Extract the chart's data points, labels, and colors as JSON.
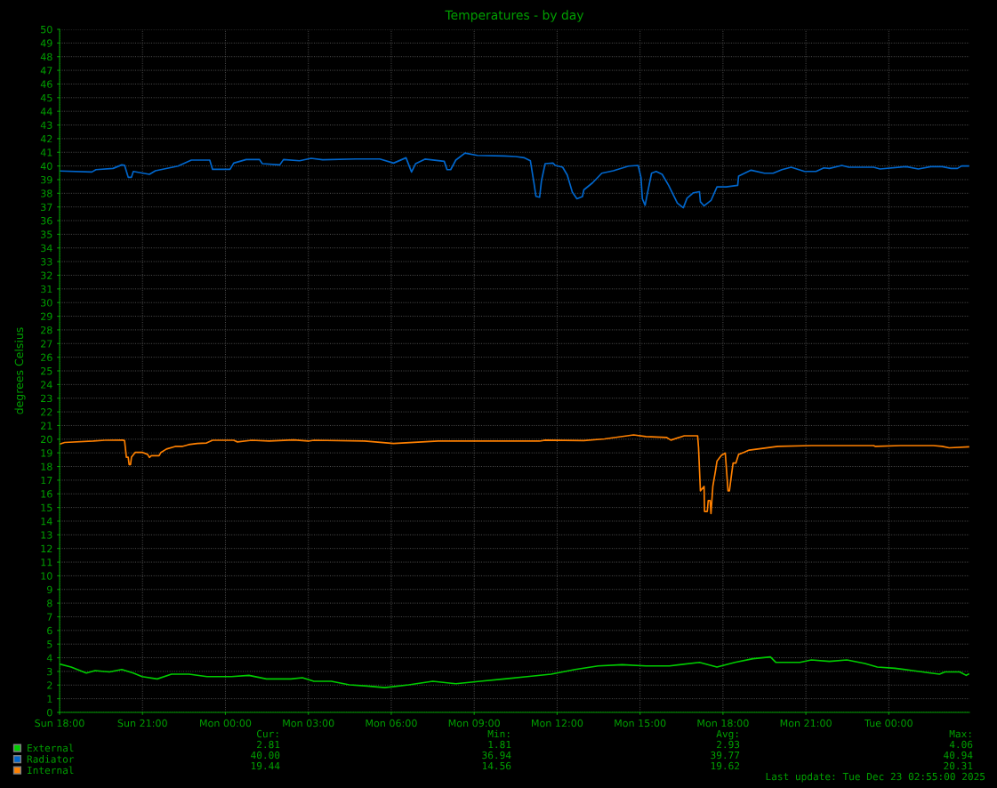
{
  "chart_data": {
    "type": "line",
    "title": "Temperatures - by day",
    "ylabel": "degrees Celsius",
    "xlim": [
      "2025-12-21T18:00",
      "2025-12-23T02:55"
    ],
    "xticks": [
      {
        "value": "2025-12-21T18:00",
        "label": "Sun 18:00"
      },
      {
        "value": "2025-12-21T21:00",
        "label": "Sun 21:00"
      },
      {
        "value": "2025-12-22T00:00",
        "label": "Mon 00:00"
      },
      {
        "value": "2025-12-22T03:00",
        "label": "Mon 03:00"
      },
      {
        "value": "2025-12-22T06:00",
        "label": "Mon 06:00"
      },
      {
        "value": "2025-12-22T09:00",
        "label": "Mon 09:00"
      },
      {
        "value": "2025-12-22T12:00",
        "label": "Mon 12:00"
      },
      {
        "value": "2025-12-22T15:00",
        "label": "Mon 15:00"
      },
      {
        "value": "2025-12-22T18:00",
        "label": "Mon 18:00"
      },
      {
        "value": "2025-12-22T21:00",
        "label": "Mon 21:00"
      },
      {
        "value": "2025-12-23T00:00",
        "label": "Tue 00:00"
      }
    ],
    "ylim": [
      0,
      50
    ],
    "yticks": [
      0,
      1,
      2,
      3,
      4,
      5,
      6,
      7,
      8,
      9,
      10,
      11,
      12,
      13,
      14,
      15,
      16,
      17,
      18,
      19,
      20,
      21,
      22,
      23,
      24,
      25,
      26,
      27,
      28,
      29,
      30,
      31,
      32,
      33,
      34,
      35,
      36,
      37,
      38,
      39,
      40,
      41,
      42,
      43,
      44,
      45,
      46,
      47,
      48,
      49,
      50
    ],
    "grid": true,
    "legend": "bottom",
    "series": [
      {
        "name": "External",
        "color": "#00cc00",
        "x": [
          "2025-12-21T18:00",
          "2025-12-21T18:25",
          "2025-12-21T18:58",
          "2025-12-21T19:17",
          "2025-12-21T19:48",
          "2025-12-21T20:15",
          "2025-12-21T20:40",
          "2025-12-21T20:59",
          "2025-12-21T21:32",
          "2025-12-21T22:03",
          "2025-12-21T22:41",
          "2025-12-21T23:20",
          "2025-12-22T00:13",
          "2025-12-22T00:51",
          "2025-12-22T01:29",
          "2025-12-22T02:22",
          "2025-12-22T02:47",
          "2025-12-22T03:12",
          "2025-12-22T03:50",
          "2025-12-22T04:29",
          "2025-12-22T05:08",
          "2025-12-22T05:46",
          "2025-12-22T06:38",
          "2025-12-22T07:30",
          "2025-12-22T08:20",
          "2025-12-22T09:13",
          "2025-12-22T10:05",
          "2025-12-22T10:55",
          "2025-12-22T11:47",
          "2025-12-22T12:39",
          "2025-12-22T13:29",
          "2025-12-22T14:21",
          "2025-12-22T15:13",
          "2025-12-22T16:04",
          "2025-12-22T17:09",
          "2025-12-22T17:47",
          "2025-12-22T18:26",
          "2025-12-22T19:05",
          "2025-12-22T19:43",
          "2025-12-22T19:55",
          "2025-12-22T20:47",
          "2025-12-22T21:12",
          "2025-12-22T21:51",
          "2025-12-22T22:29",
          "2025-12-22T23:08",
          "2025-12-22T23:35",
          "2025-12-23T00:13",
          "2025-12-23T00:52",
          "2025-12-23T01:31",
          "2025-12-23T01:50",
          "2025-12-23T02:02",
          "2025-12-23T02:34",
          "2025-12-23T02:48",
          "2025-12-23T02:53"
        ],
        "values": [
          3.54,
          3.32,
          2.88,
          3.06,
          2.96,
          3.14,
          2.88,
          2.62,
          2.45,
          2.8,
          2.8,
          2.62,
          2.62,
          2.71,
          2.45,
          2.45,
          2.54,
          2.28,
          2.28,
          2.02,
          1.93,
          1.81,
          2.02,
          2.28,
          2.1,
          2.28,
          2.45,
          2.62,
          2.8,
          3.14,
          3.4,
          3.49,
          3.4,
          3.4,
          3.66,
          3.32,
          3.66,
          3.93,
          4.06,
          3.66,
          3.66,
          3.84,
          3.74,
          3.84,
          3.58,
          3.32,
          3.23,
          3.06,
          2.88,
          2.8,
          2.96,
          2.96,
          2.71,
          2.81
        ]
      },
      {
        "name": "Radiator",
        "color": "#0066cc",
        "x": [
          "2025-12-21T18:00",
          "2025-12-21T19:10",
          "2025-12-21T19:19",
          "2025-12-21T19:56",
          "2025-12-21T20:15",
          "2025-12-21T20:21",
          "2025-12-21T20:29",
          "2025-12-21T20:36",
          "2025-12-21T20:40",
          "2025-12-21T21:15",
          "2025-12-21T21:28",
          "2025-12-21T22:17",
          "2025-12-21T22:46",
          "2025-12-21T23:26",
          "2025-12-21T23:32",
          "2025-12-22T00:10",
          "2025-12-22T00:18",
          "2025-12-22T00:45",
          "2025-12-22T01:14",
          "2025-12-22T01:20",
          "2025-12-22T01:58",
          "2025-12-22T02:06",
          "2025-12-22T02:41",
          "2025-12-22T03:06",
          "2025-12-22T03:31",
          "2025-12-22T04:43",
          "2025-12-22T05:35",
          "2025-12-22T06:05",
          "2025-12-22T06:32",
          "2025-12-22T06:44",
          "2025-12-22T06:53",
          "2025-12-22T07:13",
          "2025-12-22T07:55",
          "2025-12-22T08:01",
          "2025-12-22T08:09",
          "2025-12-22T08:20",
          "2025-12-22T08:40",
          "2025-12-22T09:07",
          "2025-12-22T10:05",
          "2025-12-22T10:30",
          "2025-12-22T10:49",
          "2025-12-22T11:02",
          "2025-12-22T11:10",
          "2025-12-22T11:14",
          "2025-12-22T11:22",
          "2025-12-22T11:26",
          "2025-12-22T11:34",
          "2025-12-22T11:51",
          "2025-12-22T11:56",
          "2025-12-22T12:12",
          "2025-12-22T12:22",
          "2025-12-22T12:33",
          "2025-12-22T12:43",
          "2025-12-22T12:55",
          "2025-12-22T12:58",
          "2025-12-22T13:17",
          "2025-12-22T13:37",
          "2025-12-22T14:02",
          "2025-12-22T14:35",
          "2025-12-22T14:56",
          "2025-12-22T15:02",
          "2025-12-22T15:05",
          "2025-12-22T15:11",
          "2025-12-22T15:15",
          "2025-12-22T15:25",
          "2025-12-22T15:35",
          "2025-12-22T15:48",
          "2025-12-22T16:02",
          "2025-12-22T16:21",
          "2025-12-22T16:34",
          "2025-12-22T16:42",
          "2025-12-22T16:56",
          "2025-12-22T17:09",
          "2025-12-22T17:11",
          "2025-12-22T17:19",
          "2025-12-22T17:34",
          "2025-12-22T17:47",
          "2025-12-22T18:07",
          "2025-12-22T18:32",
          "2025-12-22T18:34",
          "2025-12-22T19:01",
          "2025-12-22T19:30",
          "2025-12-22T19:49",
          "2025-12-22T20:08",
          "2025-12-22T20:28",
          "2025-12-22T20:57",
          "2025-12-22T21:22",
          "2025-12-22T21:39",
          "2025-12-22T21:51",
          "2025-12-22T22:18",
          "2025-12-22T22:33",
          "2025-12-22T23:27",
          "2025-12-22T23:41",
          "2025-12-23T00:38",
          "2025-12-23T01:04",
          "2025-12-23T01:31",
          "2025-12-23T01:56",
          "2025-12-23T02:15",
          "2025-12-23T02:29",
          "2025-12-23T02:38",
          "2025-12-23T02:53"
        ],
        "values": [
          39.63,
          39.56,
          39.73,
          39.82,
          40.08,
          40.05,
          39.17,
          39.17,
          39.6,
          39.39,
          39.65,
          39.99,
          40.43,
          40.43,
          39.75,
          39.75,
          40.21,
          40.47,
          40.47,
          40.17,
          40.08,
          40.47,
          40.38,
          40.56,
          40.45,
          40.51,
          40.51,
          40.21,
          40.6,
          39.56,
          40.17,
          40.5,
          40.34,
          39.73,
          39.73,
          40.43,
          40.94,
          40.77,
          40.73,
          40.69,
          40.6,
          40.38,
          38.69,
          37.78,
          37.71,
          38.91,
          40.17,
          40.21,
          40.04,
          39.91,
          39.34,
          38.08,
          37.6,
          37.76,
          38.25,
          38.77,
          39.47,
          39.65,
          39.99,
          40.04,
          39.17,
          37.6,
          37.12,
          37.82,
          39.47,
          39.6,
          39.39,
          38.58,
          37.28,
          36.94,
          37.64,
          38.04,
          38.12,
          37.38,
          37.08,
          37.47,
          38.47,
          38.47,
          38.58,
          39.26,
          39.69,
          39.47,
          39.47,
          39.73,
          39.91,
          39.6,
          39.6,
          39.86,
          39.82,
          40.04,
          39.91,
          39.91,
          39.78,
          39.95,
          39.78,
          39.95,
          39.95,
          39.82,
          39.82,
          40.0,
          40.0
        ]
      },
      {
        "name": "Internal",
        "color": "#ff8000",
        "x": [
          "2025-12-21T18:00",
          "2025-12-21T18:11",
          "2025-12-21T19:13",
          "2025-12-21T19:38",
          "2025-12-21T20:17",
          "2025-12-21T20:21",
          "2025-12-21T20:25",
          "2025-12-21T20:29",
          "2025-12-21T20:31",
          "2025-12-21T20:34",
          "2025-12-21T20:36",
          "2025-12-21T20:44",
          "2025-12-21T20:59",
          "2025-12-21T21:11",
          "2025-12-21T21:15",
          "2025-12-21T21:19",
          "2025-12-21T21:36",
          "2025-12-21T21:40",
          "2025-12-21T21:52",
          "2025-12-21T22:11",
          "2025-12-21T22:26",
          "2025-12-21T22:40",
          "2025-12-21T22:59",
          "2025-12-21T23:19",
          "2025-12-21T23:32",
          "2025-12-22T00:18",
          "2025-12-22T00:26",
          "2025-12-22T00:57",
          "2025-12-22T01:35",
          "2025-12-22T02:28",
          "2025-12-22T03:00",
          "2025-12-22T03:12",
          "2025-12-22T05:02",
          "2025-12-22T06:05",
          "2025-12-22T07:42",
          "2025-12-22T09:51",
          "2025-12-22T11:22",
          "2025-12-22T11:34",
          "2025-12-22T12:58",
          "2025-12-22T13:43",
          "2025-12-22T14:46",
          "2025-12-22T15:13",
          "2025-12-22T15:58",
          "2025-12-22T16:07",
          "2025-12-22T16:36",
          "2025-12-22T17:05",
          "2025-12-22T17:07",
          "2025-12-22T17:11",
          "2025-12-22T17:19",
          "2025-12-22T17:20",
          "2025-12-22T17:26",
          "2025-12-22T17:28",
          "2025-12-22T17:32",
          "2025-12-22T17:34",
          "2025-12-22T17:38",
          "2025-12-22T17:44",
          "2025-12-22T17:47",
          "2025-12-22T17:57",
          "2025-12-22T18:05",
          "2025-12-22T18:07",
          "2025-12-22T18:11",
          "2025-12-22T18:14",
          "2025-12-22T18:19",
          "2025-12-22T18:22",
          "2025-12-22T18:28",
          "2025-12-22T18:34",
          "2025-12-22T18:46",
          "2025-12-22T18:57",
          "2025-12-22T19:30",
          "2025-12-22T19:59",
          "2025-12-22T21:12",
          "2025-12-22T23:27",
          "2025-12-22T23:31",
          "2025-12-23T00:25",
          "2025-12-23T01:37",
          "2025-12-23T01:56",
          "2025-12-23T02:11",
          "2025-12-23T02:53"
        ],
        "values": [
          19.64,
          19.76,
          19.86,
          19.92,
          19.93,
          19.9,
          18.68,
          18.68,
          18.14,
          18.14,
          18.68,
          19.03,
          19.04,
          18.89,
          18.66,
          18.79,
          18.79,
          19.03,
          19.28,
          19.47,
          19.47,
          19.6,
          19.69,
          19.72,
          19.92,
          19.92,
          19.8,
          19.92,
          19.86,
          19.95,
          19.86,
          19.92,
          19.86,
          19.69,
          19.86,
          19.86,
          19.86,
          19.93,
          19.9,
          20.02,
          20.31,
          20.19,
          20.12,
          19.93,
          20.25,
          20.25,
          19.37,
          16.22,
          16.54,
          14.71,
          14.71,
          15.51,
          15.51,
          14.56,
          16.54,
          17.74,
          18.39,
          18.83,
          18.98,
          18.07,
          16.22,
          16.22,
          17.52,
          18.25,
          18.25,
          18.89,
          19.04,
          19.2,
          19.34,
          19.47,
          19.53,
          19.53,
          19.47,
          19.53,
          19.53,
          19.47,
          19.37,
          19.44
        ]
      }
    ],
    "annotations": [
      "Cur:",
      "Min:",
      "Avg:",
      "Max:",
      "2.81",
      "1.81",
      "2.93",
      "4.06",
      "40.00",
      "36.94",
      "39.77",
      "40.94",
      "19.44",
      "14.56",
      "19.62",
      "20.31",
      "Last update: Tue Dec 23 02:55:00 2025"
    ]
  }
}
